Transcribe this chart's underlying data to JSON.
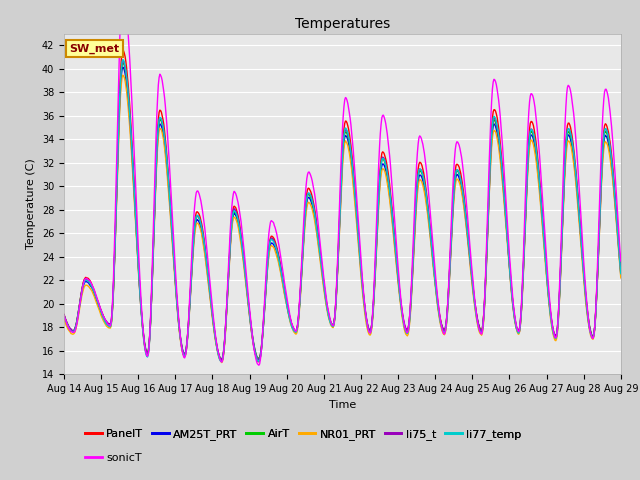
{
  "title": "Temperatures",
  "xlabel": "Time",
  "ylabel": "Temperature (C)",
  "ylim": [
    14,
    43
  ],
  "yticks": [
    14,
    16,
    18,
    20,
    22,
    24,
    26,
    28,
    30,
    32,
    34,
    36,
    38,
    40,
    42
  ],
  "start_day": 14,
  "end_day": 29,
  "fig_bg_color": "#d0d0d0",
  "plot_bg_color": "#e8e8e8",
  "grid_color": "#ffffff",
  "legend_items": [
    {
      "label": "PanelT",
      "color": "#ff0000"
    },
    {
      "label": "AM25T_PRT",
      "color": "#0000ee"
    },
    {
      "label": "AirT",
      "color": "#00cc00"
    },
    {
      "label": "NR01_PRT",
      "color": "#ffaa00"
    },
    {
      "label": "li75_t",
      "color": "#9900bb"
    },
    {
      "label": "li77_temp",
      "color": "#00cccc"
    },
    {
      "label": "sonicT",
      "color": "#ff00ff"
    }
  ],
  "annotation_text": "SW_met",
  "annotation_fg": "#880000",
  "annotation_bg": "#ffff99",
  "annotation_border": "#cc8800",
  "title_fontsize": 10,
  "label_fontsize": 8,
  "tick_fontsize": 7,
  "legend_fontsize": 8,
  "line_width": 1.0,
  "hours_resolution": 48,
  "day_min_temps": [
    17.5,
    18.0,
    15.5,
    15.5,
    15.0,
    15.0,
    17.5,
    18.0,
    17.5,
    17.5,
    17.5,
    17.5,
    17.5,
    17.0,
    17.0
  ],
  "day_max_temps": [
    22.0,
    41.0,
    36.0,
    27.5,
    28.0,
    25.5,
    29.5,
    35.0,
    32.5,
    31.5,
    31.5,
    36.0,
    35.0,
    35.0,
    35.0
  ],
  "sonic_extra_peak": [
    0.0,
    4.0,
    2.5,
    1.5,
    1.0,
    1.0,
    1.0,
    1.5,
    2.5,
    2.0,
    1.5,
    2.0,
    2.0,
    2.5,
    2.0
  ]
}
